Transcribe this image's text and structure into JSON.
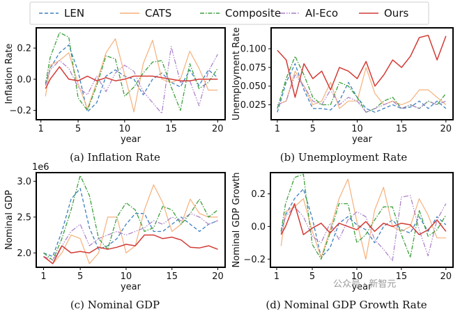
{
  "colors": {
    "LEN": "#3b7fbf",
    "CATS": "#f5b07a",
    "Composite": "#3aa03a",
    "AI-Eco": "#a87cc7",
    "Ours": "#d23a35"
  },
  "legend": [
    "LEN",
    "CATS",
    "Composite",
    "AI-Eco",
    "Ours"
  ],
  "watermark": "公众号 · 新智元",
  "chart_data": [
    {
      "type": "line",
      "id": "a",
      "caption": "(a) Inflation Rate",
      "xlabel": "year",
      "ylabel": "Inflation Rate",
      "offset_label": "",
      "xlim": [
        0.5,
        20.8
      ],
      "ylim": [
        -0.26,
        0.33
      ],
      "xticks": [
        1,
        5,
        10,
        15,
        20
      ],
      "xticklabels": [
        "1",
        "5",
        "10",
        "15",
        "20"
      ],
      "yticks": [
        -0.2,
        0.0,
        0.2
      ],
      "yticklabels": [
        "−0.2",
        "0.0",
        "0.2"
      ],
      "x": [
        1.5,
        2,
        3,
        4,
        5,
        6,
        7,
        8,
        9,
        10,
        11,
        12,
        13,
        14,
        15,
        16,
        17,
        18,
        19,
        20
      ],
      "series": [
        {
          "name": "LEN",
          "values": [
            -0.03,
            0.07,
            0.17,
            0.22,
            0.05,
            -0.21,
            -0.15,
            0.02,
            0.06,
            0.02,
            0.0,
            -0.1,
            0.0,
            0.04,
            -0.02,
            -0.05,
            0.06,
            -0.04,
            0.06,
            0.01
          ]
        },
        {
          "name": "CATS",
          "values": [
            -0.11,
            0.09,
            0.12,
            0.17,
            -0.03,
            -0.19,
            -0.02,
            0.17,
            0.26,
            0.03,
            -0.21,
            0.1,
            0.25,
            0.0,
            -0.02,
            0.0,
            0.18,
            0.07,
            -0.07,
            -0.07
          ]
        },
        {
          "name": "Composite",
          "values": [
            -0.03,
            0.14,
            0.3,
            0.27,
            -0.12,
            -0.2,
            -0.04,
            0.15,
            0.13,
            -0.11,
            -0.05,
            0.04,
            0.11,
            0.12,
            -0.05,
            -0.2,
            0.1,
            -0.06,
            -0.02,
            0.07
          ]
        },
        {
          "name": "AI-Eco",
          "values": [
            -0.04,
            0.06,
            0.12,
            0.07,
            -0.05,
            -0.1,
            0.02,
            -0.08,
            0.04,
            0.09,
            0.05,
            -0.08,
            -0.15,
            -0.22,
            0.21,
            -0.02,
            -0.01,
            -0.17,
            0.05,
            0.16
          ]
        },
        {
          "name": "Ours",
          "values": [
            -0.06,
            0.0,
            0.08,
            0.0,
            -0.01,
            0.02,
            -0.01,
            0.01,
            -0.01,
            0.0,
            0.02,
            0.02,
            0.02,
            0.01,
            0.0,
            -0.01,
            -0.01,
            0.0,
            0.0,
            0.0
          ]
        }
      ]
    },
    {
      "type": "line",
      "id": "b",
      "caption": "(b) Unemployment Rate",
      "xlabel": "year",
      "ylabel": "Unemployment Rate",
      "offset_label": "",
      "xlim": [
        0.3,
        20.8
      ],
      "ylim": [
        0.005,
        0.128
      ],
      "xticks": [
        1,
        5,
        10,
        15,
        20
      ],
      "xticklabels": [
        "1",
        "5",
        "10",
        "15",
        "20"
      ],
      "yticks": [
        0.025,
        0.05,
        0.075,
        0.1
      ],
      "yticklabels": [
        "0.025",
        "0.050",
        "0.075",
        "0.100"
      ],
      "x": [
        1,
        2,
        3,
        4,
        5,
        6,
        7,
        8,
        9,
        10,
        11,
        12,
        13,
        14,
        15,
        16,
        17,
        18,
        19,
        20
      ],
      "series": [
        {
          "name": "LEN",
          "values": [
            0.015,
            0.055,
            0.08,
            0.045,
            0.02,
            0.02,
            0.018,
            0.03,
            0.055,
            0.035,
            0.02,
            0.015,
            0.02,
            0.025,
            0.02,
            0.022,
            0.03,
            0.02,
            0.03,
            0.02
          ]
        },
        {
          "name": "CATS",
          "values": [
            0.025,
            0.03,
            0.07,
            0.05,
            0.025,
            0.03,
            0.055,
            0.02,
            0.03,
            0.03,
            0.075,
            0.04,
            0.025,
            0.03,
            0.025,
            0.03,
            0.045,
            0.045,
            0.035,
            0.025
          ]
        },
        {
          "name": "Composite",
          "values": [
            0.02,
            0.06,
            0.09,
            0.065,
            0.035,
            0.025,
            0.025,
            0.055,
            0.05,
            0.035,
            0.015,
            0.02,
            0.03,
            0.035,
            0.02,
            0.025,
            0.02,
            0.03,
            0.025,
            0.04
          ]
        },
        {
          "name": "AI-Eco",
          "values": [
            0.025,
            0.03,
            0.065,
            0.05,
            0.03,
            0.025,
            0.045,
            0.025,
            0.035,
            0.03,
            0.015,
            0.02,
            0.025,
            0.03,
            0.02,
            0.025,
            0.02,
            0.03,
            0.025,
            0.03
          ]
        },
        {
          "name": "Ours",
          "values": [
            0.098,
            0.085,
            0.035,
            0.08,
            0.06,
            0.07,
            0.045,
            0.075,
            0.07,
            0.06,
            0.083,
            0.05,
            0.065,
            0.085,
            0.075,
            0.09,
            0.115,
            0.118,
            0.085,
            0.117
          ]
        }
      ]
    },
    {
      "type": "line",
      "id": "c",
      "caption": "(c) Nominal GDP",
      "xlabel": "year",
      "ylabel": "Nominal GDP",
      "offset_label": "1e6",
      "xlim": [
        0.2,
        20.8
      ],
      "ylim": [
        1.8,
        3.12
      ],
      "xticks": [
        1,
        5,
        10,
        15,
        20
      ],
      "xticklabels": [
        "1",
        "5",
        "10",
        "15",
        "20"
      ],
      "yticks": [
        2.0,
        2.5,
        3.0
      ],
      "yticklabels": [
        "2.0",
        "2.5",
        "3.0"
      ],
      "x": [
        1,
        2,
        3,
        4,
        5,
        6,
        7,
        8,
        9,
        10,
        11,
        12,
        13,
        14,
        15,
        16,
        17,
        18,
        19,
        20
      ],
      "series": [
        {
          "name": "LEN",
          "values": [
            2.0,
            1.95,
            2.3,
            2.75,
            2.9,
            2.35,
            2.05,
            2.1,
            2.2,
            2.4,
            2.55,
            2.55,
            2.3,
            2.3,
            2.4,
            2.5,
            2.4,
            2.3,
            2.4,
            2.45
          ]
        },
        {
          "name": "CATS",
          "values": [
            1.95,
            1.85,
            2.0,
            2.25,
            2.2,
            1.85,
            2.0,
            2.5,
            2.5,
            2.0,
            2.1,
            2.6,
            2.95,
            2.7,
            2.3,
            2.4,
            2.75,
            2.55,
            2.5,
            2.5
          ]
        },
        {
          "name": "Composite",
          "values": [
            2.0,
            1.9,
            2.2,
            2.6,
            3.08,
            2.8,
            2.2,
            2.05,
            2.5,
            2.7,
            2.6,
            2.3,
            2.35,
            2.65,
            2.6,
            2.4,
            2.55,
            2.75,
            2.5,
            2.6
          ]
        },
        {
          "name": "AI-Eco",
          "values": [
            1.95,
            1.9,
            2.1,
            2.3,
            2.4,
            2.1,
            2.2,
            2.25,
            2.3,
            2.25,
            2.3,
            2.35,
            2.45,
            2.4,
            2.5,
            2.45,
            2.55,
            2.5,
            2.4,
            2.45
          ]
        },
        {
          "name": "Ours",
          "values": [
            1.95,
            1.85,
            2.1,
            2.0,
            2.02,
            2.0,
            2.08,
            2.05,
            2.08,
            2.12,
            2.1,
            2.25,
            2.25,
            2.2,
            2.22,
            2.18,
            2.08,
            2.07,
            2.1,
            2.05
          ]
        }
      ]
    },
    {
      "type": "line",
      "id": "d",
      "caption": "(d) Nominal GDP Growth Rate",
      "xlabel": "year",
      "ylabel": "Nominal GDP Growth",
      "offset_label": "",
      "xlim": [
        0.3,
        20.8
      ],
      "ylim": [
        -0.25,
        0.33
      ],
      "xticks": [
        1,
        5,
        10,
        15,
        20
      ],
      "xticklabels": [
        "1",
        "5",
        "10",
        "15",
        "20"
      ],
      "yticks": [
        -0.2,
        0.0,
        0.2
      ],
      "yticklabels": [
        "−0.2",
        "0.0",
        "0.2"
      ],
      "x": [
        1.5,
        2,
        3,
        4,
        5,
        6,
        7,
        8,
        9,
        10,
        11,
        12,
        13,
        14,
        15,
        16,
        17,
        18,
        19,
        20
      ],
      "series": [
        {
          "name": "LEN",
          "values": [
            -0.03,
            0.07,
            0.17,
            0.23,
            0.05,
            -0.19,
            -0.13,
            0.02,
            0.06,
            0.01,
            -0.02,
            -0.1,
            0.0,
            0.04,
            -0.02,
            -0.04,
            0.06,
            -0.03,
            0.06,
            0.01
          ]
        },
        {
          "name": "CATS",
          "values": [
            -0.12,
            0.09,
            0.12,
            0.17,
            -0.03,
            -0.19,
            -0.02,
            0.17,
            0.29,
            0.03,
            -0.2,
            0.1,
            0.24,
            0.0,
            -0.03,
            0.0,
            0.17,
            0.07,
            -0.07,
            -0.07
          ]
        },
        {
          "name": "Composite",
          "values": [
            -0.03,
            0.14,
            0.3,
            0.32,
            -0.11,
            -0.2,
            -0.04,
            0.14,
            0.14,
            -0.1,
            -0.05,
            0.04,
            0.12,
            0.12,
            -0.05,
            -0.19,
            0.1,
            -0.06,
            -0.02,
            0.07
          ]
        },
        {
          "name": "AI-Eco",
          "values": [
            -0.04,
            0.06,
            0.12,
            0.06,
            -0.06,
            -0.1,
            0.02,
            -0.08,
            0.04,
            0.09,
            0.06,
            -0.08,
            -0.14,
            -0.21,
            0.18,
            0.19,
            -0.02,
            -0.18,
            0.04,
            0.14
          ]
        },
        {
          "name": "Ours",
          "values": [
            -0.05,
            0.0,
            0.14,
            -0.05,
            -0.01,
            0.02,
            -0.04,
            0.02,
            0.0,
            -0.02,
            0.03,
            -0.03,
            0.02,
            0.0,
            0.02,
            0.01,
            -0.05,
            -0.02,
            0.04,
            -0.03
          ]
        }
      ]
    }
  ]
}
